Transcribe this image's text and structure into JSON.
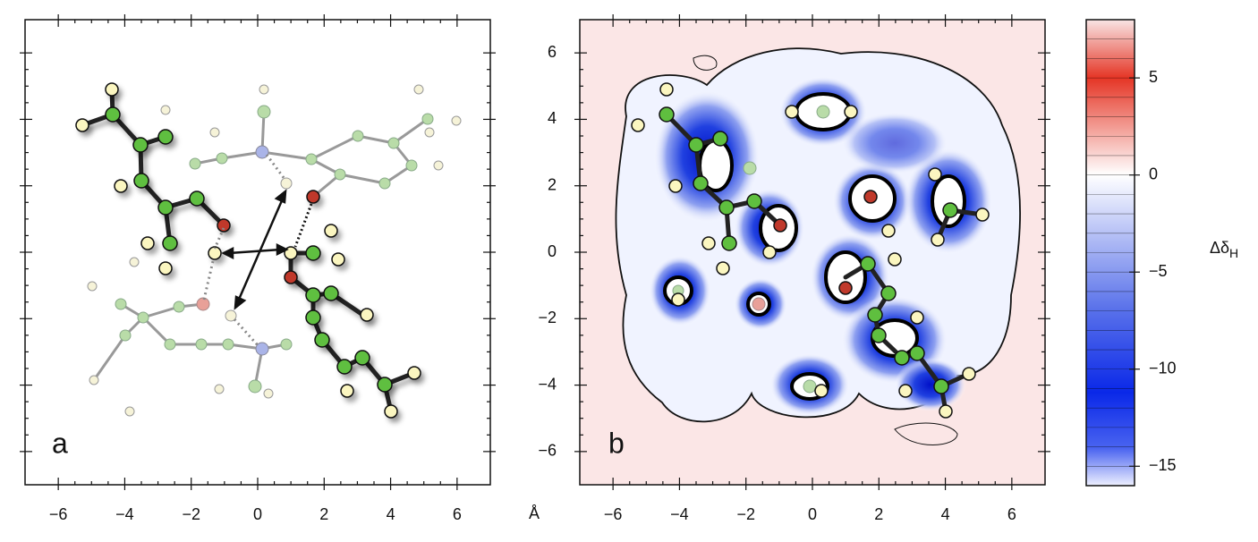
{
  "chart_data": [
    {
      "type": "molecule",
      "panel_label": "a",
      "xlim": [
        -7,
        7
      ],
      "ylim": [
        -7,
        7
      ],
      "xticks": [
        {
          "value": -6,
          "label": "−6"
        },
        {
          "value": -4,
          "label": "−4"
        },
        {
          "value": -2,
          "label": "−2"
        },
        0,
        2,
        4,
        6
      ]
    },
    {
      "type": "contour",
      "panel_label": "b",
      "xlim": [
        -7,
        7
      ],
      "ylim": [
        -7,
        7
      ],
      "xlabel": "Å",
      "xticks": [
        {
          "value": -6,
          "label": "−6"
        },
        {
          "value": -4,
          "label": "−4"
        },
        {
          "value": -2,
          "label": "−2"
        },
        0,
        2,
        4,
        6
      ],
      "yticks": [
        {
          "value": -6,
          "label": "−6"
        },
        {
          "value": -4,
          "label": "−4"
        },
        {
          "value": -2,
          "label": "−2"
        },
        0,
        2,
        4,
        6
      ],
      "colorbar": {
        "label": "Δδ",
        "label_sub": "H",
        "lim": [
          -16,
          8
        ],
        "ticks": [
          {
            "value": -15,
            "label": "−15"
          },
          {
            "value": -10,
            "label": "−10"
          },
          {
            "value": -5,
            "label": "−5"
          },
          0,
          5
        ]
      }
    }
  ]
}
